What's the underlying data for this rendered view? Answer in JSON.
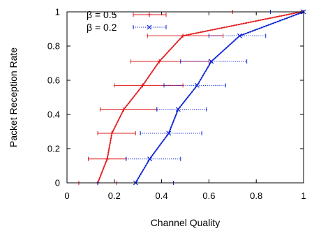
{
  "chart_data": {
    "type": "line",
    "xlabel": "Channel Quality",
    "ylabel": "Packet Reception Rate",
    "xlim": [
      0,
      1
    ],
    "ylim": [
      0,
      1
    ],
    "xticks": [
      0,
      0.2,
      0.4,
      0.6,
      0.8,
      1
    ],
    "yticks": [
      0,
      0.2,
      0.4,
      0.6,
      0.8,
      1
    ],
    "xtick_labels": [
      "0",
      "0.2",
      "0.4",
      "0.6",
      "0.8",
      "1"
    ],
    "ytick_labels": [
      "0",
      "0.2",
      "0.4",
      "0.6",
      "0.8",
      "1"
    ],
    "grid": false,
    "legend_position": "top-left",
    "series": [
      {
        "name": "β = 0.5",
        "color": "#e31a1c",
        "line_style": "dotted",
        "marker": "plus",
        "error_bar_style": "solid",
        "points": [
          {
            "x": 0.13,
            "y": 0.0,
            "xmin": 0.05,
            "xmax": 0.21
          },
          {
            "x": 0.17,
            "y": 0.14,
            "xmin": 0.09,
            "xmax": 0.25
          },
          {
            "x": 0.19,
            "y": 0.29,
            "xmin": 0.13,
            "xmax": 0.29
          },
          {
            "x": 0.24,
            "y": 0.43,
            "xmin": 0.14,
            "xmax": 0.38
          },
          {
            "x": 0.32,
            "y": 0.57,
            "xmin": 0.2,
            "xmax": 0.49
          },
          {
            "x": 0.39,
            "y": 0.71,
            "xmin": 0.27,
            "xmax": 0.6
          },
          {
            "x": 0.49,
            "y": 0.86,
            "xmin": 0.34,
            "xmax": 0.66
          },
          {
            "x": 0.99,
            "y": 1.0,
            "xmin": 0.7,
            "xmax": 1.0
          }
        ]
      },
      {
        "name": "β = 0.2",
        "color": "#0a22d6",
        "line_style": "dotted",
        "marker": "x",
        "error_bar_style": "dotted",
        "points": [
          {
            "x": 0.29,
            "y": 0.0,
            "xmin": 0.13,
            "xmax": 0.45
          },
          {
            "x": 0.35,
            "y": 0.14,
            "xmin": 0.25,
            "xmax": 0.48
          },
          {
            "x": 0.43,
            "y": 0.29,
            "xmin": 0.31,
            "xmax": 0.57
          },
          {
            "x": 0.47,
            "y": 0.43,
            "xmin": 0.38,
            "xmax": 0.59
          },
          {
            "x": 0.55,
            "y": 0.57,
            "xmin": 0.41,
            "xmax": 0.67
          },
          {
            "x": 0.61,
            "y": 0.71,
            "xmin": 0.48,
            "xmax": 0.76
          },
          {
            "x": 0.73,
            "y": 0.86,
            "xmin": 0.6,
            "xmax": 0.84
          },
          {
            "x": 1.0,
            "y": 1.0,
            "xmin": 0.86,
            "xmax": 1.0
          }
        ]
      }
    ]
  }
}
